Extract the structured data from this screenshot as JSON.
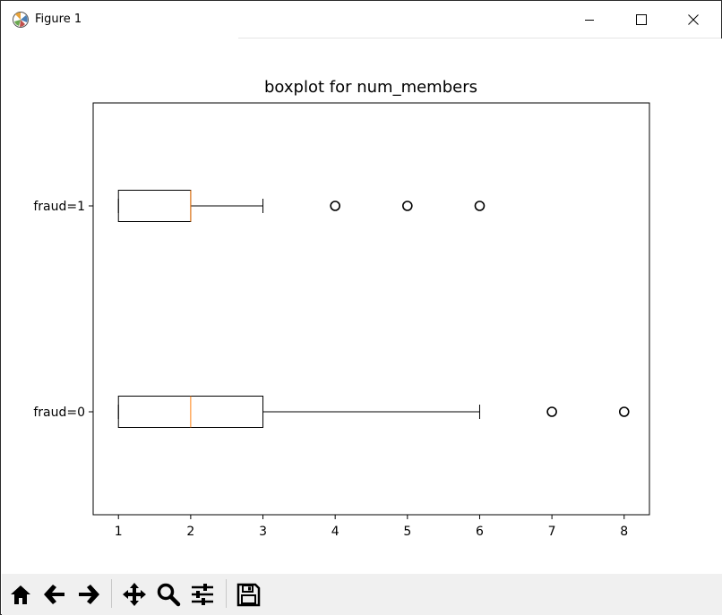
{
  "window": {
    "title": "Figure 1",
    "icons": [
      "matplotlib-icon",
      "minimize-icon",
      "maximize-icon",
      "close-icon"
    ]
  },
  "toolbar": {
    "buttons": [
      "home-icon",
      "back-icon",
      "forward-icon",
      "pan-icon",
      "zoom-icon",
      "configure-subplots-icon",
      "save-icon"
    ]
  },
  "chart_data": {
    "type": "boxplot",
    "title": "boxplot for num_members",
    "orientation": "horizontal",
    "categories": [
      "fraud=0",
      "fraud=1"
    ],
    "boxes": [
      {
        "label": "fraud=0",
        "whislo": 1,
        "q1": 1,
        "median": 2,
        "q3": 3,
        "whishi": 6,
        "fliers": [
          7,
          8
        ]
      },
      {
        "label": "fraud=1",
        "whislo": 1,
        "q1": 1,
        "median": 2,
        "q3": 2,
        "whishi": 3,
        "fliers": [
          4,
          5,
          6
        ]
      }
    ],
    "xlim": [
      0.65,
      8.35
    ],
    "xticks": [
      "1",
      "2",
      "3",
      "4",
      "5",
      "6",
      "7",
      "8"
    ],
    "grid": false,
    "colors": {
      "box": "#000000",
      "median": "#ff7f0e",
      "flier": "#000000"
    }
  }
}
